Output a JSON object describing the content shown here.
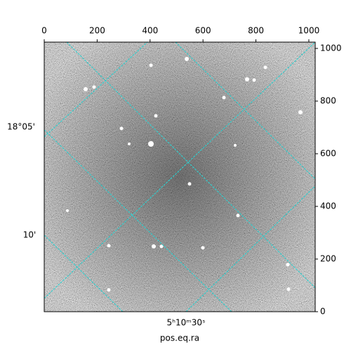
{
  "chart_data": {
    "type": "image",
    "xlabel": "pos.eq.ra",
    "xlim": [
      0,
      1024
    ],
    "xticks": [
      0,
      200,
      400,
      600,
      800,
      1000
    ],
    "ylim": [
      0,
      1024
    ],
    "yticks": [
      0,
      200,
      400,
      600,
      800,
      1000
    ],
    "ra_ticks": [
      "5ʰ10ᵐ30ˢ"
    ],
    "dec_ticks": [
      "18°05'",
      "10'"
    ],
    "grid_color": "#33cccc"
  }
}
